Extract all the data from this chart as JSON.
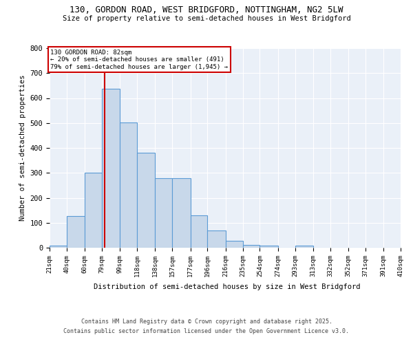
{
  "title1": "130, GORDON ROAD, WEST BRIDGFORD, NOTTINGHAM, NG2 5LW",
  "title2": "Size of property relative to semi-detached houses in West Bridgford",
  "xlabel": "Distribution of semi-detached houses by size in West Bridgford",
  "ylabel": "Number of semi-detached properties",
  "bin_edges": [
    21,
    40,
    60,
    79,
    99,
    118,
    138,
    157,
    177,
    196,
    216,
    235,
    254,
    274,
    293,
    313,
    332,
    352,
    371,
    391,
    410
  ],
  "bar_heights": [
    8,
    128,
    302,
    638,
    502,
    382,
    278,
    278,
    130,
    70,
    27,
    10,
    8,
    0,
    7,
    0,
    0,
    0,
    0,
    0
  ],
  "bar_color": "#c8d8ea",
  "bar_edge_color": "#5b9bd5",
  "red_line_x": 82,
  "red_line_color": "#cc0000",
  "annotation_title": "130 GORDON ROAD: 82sqm",
  "annotation_line1": "← 20% of semi-detached houses are smaller (491)",
  "annotation_line2": "79% of semi-detached houses are larger (1,945) →",
  "annotation_box_color": "#cc0000",
  "ylim": [
    0,
    800
  ],
  "yticks": [
    0,
    100,
    200,
    300,
    400,
    500,
    600,
    700,
    800
  ],
  "tick_labels": [
    "21sqm",
    "40sqm",
    "60sqm",
    "79sqm",
    "99sqm",
    "118sqm",
    "138sqm",
    "157sqm",
    "177sqm",
    "196sqm",
    "216sqm",
    "235sqm",
    "254sqm",
    "274sqm",
    "293sqm",
    "313sqm",
    "332sqm",
    "352sqm",
    "371sqm",
    "391sqm",
    "410sqm"
  ],
  "background_color": "#eaf0f8",
  "footer1": "Contains HM Land Registry data © Crown copyright and database right 2025.",
  "footer2": "Contains public sector information licensed under the Open Government Licence v3.0."
}
